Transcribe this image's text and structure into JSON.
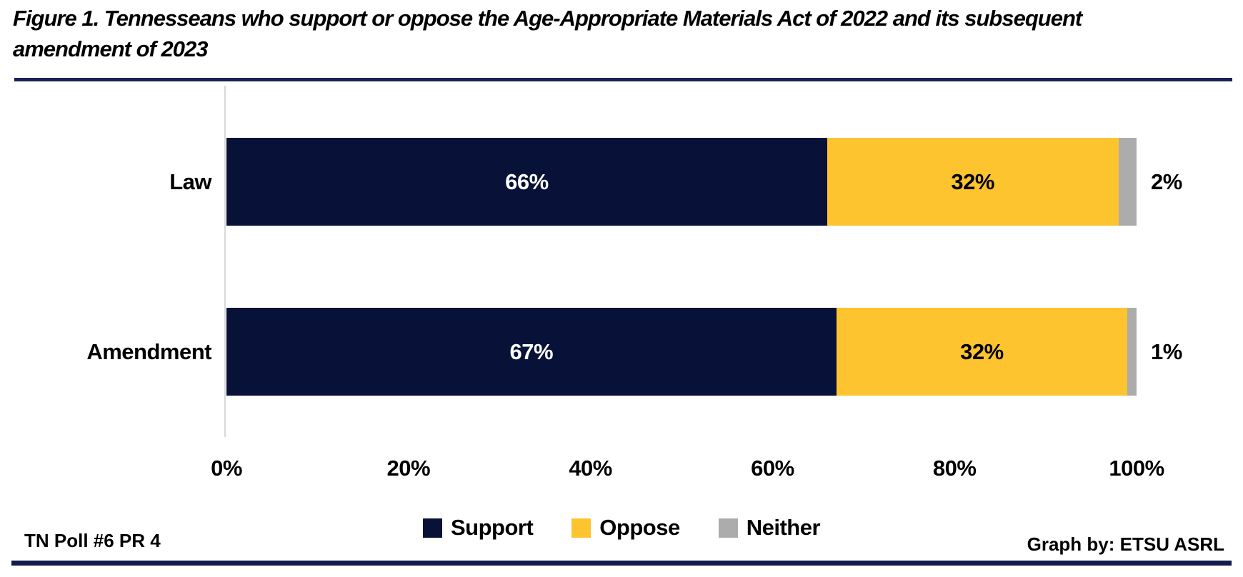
{
  "title": {
    "full": "Figure 1. Tennesseans who support or oppose the Age-Appropriate Materials Act of 2022 and its subsequent amendment of 2023",
    "lines": [
      "Figure 1. Tennesseans who support or oppose the Age-Appropriate Materials Act of 2022 and its subsequent",
      "amendment of 2023"
    ]
  },
  "footer": {
    "left": "TN Poll #6 PR 4",
    "right": "Graph by: ETSU ASRL"
  },
  "colors": {
    "support_navy": "#081238",
    "oppose_gold": "#FDC42F",
    "neither_gray": "#ACACAC",
    "rule_navy": "#1A2153",
    "axis_line_gray": "#D9D9D9",
    "inside_label_on_navy": "#FFFFFF",
    "inside_label_on_gold": "#000000"
  },
  "chart_data": {
    "type": "bar",
    "orientation": "horizontal",
    "stacked": true,
    "grid": false,
    "legend_position": "bottom",
    "categories": [
      "Law",
      "Amendment"
    ],
    "series": [
      {
        "name": "Support",
        "color": "#081238",
        "label_color": "#FFFFFF",
        "label_position": "inside",
        "values": [
          66,
          67
        ],
        "labels": [
          "66%",
          "67%"
        ]
      },
      {
        "name": "Oppose",
        "color": "#FDC42F",
        "label_color": "#000000",
        "label_position": "inside",
        "values": [
          32,
          32
        ],
        "labels": [
          "32%",
          "32%"
        ]
      },
      {
        "name": "Neither",
        "color": "#ACACAC",
        "label_color": "#000000",
        "label_position": "outside",
        "values": [
          2,
          1
        ],
        "labels": [
          "2%",
          "1%"
        ]
      }
    ],
    "xlim": [
      0,
      100
    ],
    "x_ticks": [
      {
        "value": 0,
        "label": "0%"
      },
      {
        "value": 20,
        "label": "20%"
      },
      {
        "value": 40,
        "label": "40%"
      },
      {
        "value": 60,
        "label": "60%"
      },
      {
        "value": 80,
        "label": "80%"
      },
      {
        "value": 100,
        "label": "100%"
      }
    ]
  }
}
